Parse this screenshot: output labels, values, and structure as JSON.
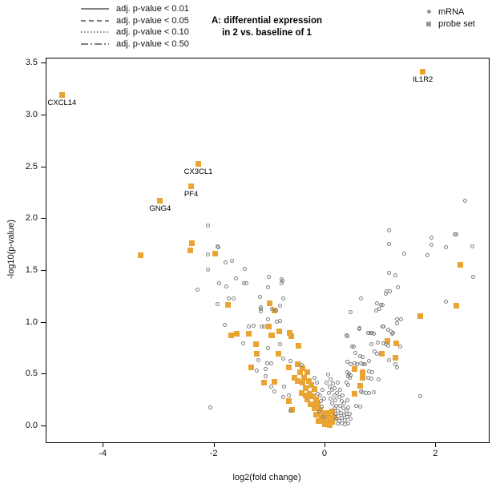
{
  "figure": {
    "kind": "volcano plot"
  },
  "legend_lines": {
    "items": [
      {
        "label": "adj. p-value < 0.01",
        "style": "solid"
      },
      {
        "label": "adj. p-value < 0.05",
        "style": "dashed"
      },
      {
        "label": "adj. p-value < 0.10",
        "style": "dotted"
      },
      {
        "label": "adj. p-value < 0.50",
        "style": "dashdot"
      }
    ]
  },
  "legend_markers": {
    "items": [
      {
        "label": "mRNA",
        "marker": "circle"
      },
      {
        "label": "probe set",
        "marker": "square"
      }
    ]
  },
  "chart_data": {
    "type": "scatter",
    "title": "A: differential expression in 2 vs. baseline of 1",
    "title_lines": [
      "A: differential expression",
      "in 2 vs. baseline of 1"
    ],
    "xlabel": "log2(fold change)",
    "ylabel": "-log10(p-value)",
    "xlim": [
      -5.03,
      2.95
    ],
    "ylim": [
      -0.155,
      3.55
    ],
    "grid": false,
    "legend_position": "top",
    "x_ticks": [
      {
        "v": -4,
        "label": "-4"
      },
      {
        "v": -2,
        "label": "-2"
      },
      {
        "v": 0,
        "label": "0"
      },
      {
        "v": 2,
        "label": "2"
      }
    ],
    "y_ticks": [
      {
        "v": 0.0,
        "label": "0.0"
      },
      {
        "v": 0.5,
        "label": "0.5"
      },
      {
        "v": 1.0,
        "label": "1.0"
      },
      {
        "v": 1.5,
        "label": "1.5"
      },
      {
        "v": 2.0,
        "label": "2.0"
      },
      {
        "v": 2.5,
        "label": "2.5"
      },
      {
        "v": 3.0,
        "label": "3.0"
      },
      {
        "v": 3.5,
        "label": "3.5"
      }
    ],
    "colors": {
      "probe_set": "#E9A431",
      "mrna": "#7E7E7E",
      "legend_marker": "#989898"
    },
    "labeled_points": [
      {
        "label": "CXCL14",
        "x": -4.75,
        "y": 3.2,
        "series": "probe set"
      },
      {
        "label": "IL1R2",
        "x": 1.76,
        "y": 3.42,
        "series": "probe set"
      },
      {
        "label": "CX3CL1",
        "x": -2.29,
        "y": 2.53,
        "series": "probe set"
      },
      {
        "label": "PF4",
        "x": -2.42,
        "y": 2.32,
        "series": "probe set"
      },
      {
        "label": "GNG4",
        "x": -2.98,
        "y": 2.18,
        "series": "probe set"
      }
    ],
    "series": [
      {
        "name": "probe set",
        "marker": "square",
        "points": [
          [
            -3.33,
            1.65
          ],
          [
            -2.4,
            1.77
          ],
          [
            -2.44,
            1.7
          ],
          [
            -1.98,
            1.67
          ],
          [
            -1.76,
            1.17
          ],
          [
            -1.0,
            1.19
          ],
          [
            -0.92,
            1.12
          ],
          [
            -1.02,
            0.96
          ],
          [
            -0.83,
            0.92
          ],
          [
            -0.64,
            0.9
          ],
          [
            -1.59,
            0.89
          ],
          [
            -1.38,
            0.89
          ],
          [
            -0.96,
            0.88
          ],
          [
            2.44,
            1.56
          ],
          [
            2.37,
            1.16
          ],
          [
            1.72,
            1.06
          ],
          [
            -1.7,
            0.88
          ],
          [
            -0.98,
            0.88
          ],
          [
            -0.61,
            0.87
          ],
          [
            -1.25,
            0.79
          ],
          [
            -0.48,
            0.78
          ],
          [
            -1.23,
            0.7
          ],
          [
            -0.85,
            0.7
          ],
          [
            -1.33,
            0.57
          ],
          [
            -0.65,
            0.57
          ],
          [
            -0.41,
            0.56
          ],
          [
            -1.1,
            0.42
          ],
          [
            -0.91,
            0.43
          ],
          [
            -0.55,
            0.47
          ],
          [
            -0.41,
            0.42
          ],
          [
            -0.65,
            0.24
          ],
          [
            -0.43,
            0.32
          ],
          [
            -0.36,
            0.3
          ],
          [
            -0.24,
            0.21
          ],
          [
            -0.17,
            0.2
          ],
          [
            -0.6,
            0.16
          ],
          [
            1.12,
            0.82
          ],
          [
            1.28,
            0.8
          ],
          [
            1.02,
            0.7
          ],
          [
            1.27,
            0.66
          ],
          [
            0.53,
            0.55
          ],
          [
            0.68,
            0.52
          ],
          [
            0.68,
            0.47
          ],
          [
            0.63,
            0.39
          ],
          [
            0.53,
            0.31
          ],
          [
            -0.5,
            0.6
          ],
          [
            -0.45,
            0.52
          ],
          [
            -0.5,
            0.44
          ],
          [
            -0.38,
            0.47
          ],
          [
            -0.33,
            0.52
          ],
          [
            -0.3,
            0.44
          ],
          [
            -0.36,
            0.37
          ],
          [
            -0.28,
            0.31
          ],
          [
            -0.33,
            0.26
          ],
          [
            -0.25,
            0.4
          ],
          [
            -0.2,
            0.36
          ],
          [
            -0.23,
            0.29
          ],
          [
            -0.17,
            0.26
          ],
          [
            -0.27,
            0.21
          ],
          [
            -0.2,
            0.17
          ],
          [
            -0.13,
            0.21
          ],
          [
            -0.1,
            0.16
          ],
          [
            -0.16,
            0.11
          ],
          [
            -0.07,
            0.1
          ],
          [
            -0.12,
            0.05
          ],
          [
            -0.04,
            0.05
          ],
          [
            -0.02,
            0.13
          ],
          [
            0.01,
            0.08
          ],
          [
            0.03,
            0.03
          ],
          [
            0.07,
            0.05
          ],
          [
            0.1,
            0.08
          ],
          [
            0.05,
            0.13
          ],
          [
            0.0,
            0.02
          ],
          [
            0.08,
            0.01
          ],
          [
            0.13,
            0.04
          ],
          [
            0.16,
            0.09
          ],
          [
            0.12,
            0.14
          ]
        ]
      },
      {
        "name": "mRNA",
        "marker": "circle",
        "points": [
          [
            -2.11,
            1.94
          ],
          [
            -1.94,
            1.74
          ],
          [
            -1.93,
            1.73
          ],
          [
            -2.11,
            1.66
          ],
          [
            -1.8,
            1.58
          ],
          [
            -1.69,
            1.6
          ],
          [
            -2.11,
            1.51
          ],
          [
            -1.45,
            1.52
          ],
          [
            -1.61,
            1.43
          ],
          [
            -1.92,
            1.38
          ],
          [
            -1.78,
            1.35
          ],
          [
            -1.46,
            1.38
          ],
          [
            -1.43,
            1.38
          ],
          [
            -1.02,
            1.44
          ],
          [
            -0.79,
            1.42
          ],
          [
            -0.77,
            1.4
          ],
          [
            -0.78,
            1.38
          ],
          [
            -1.04,
            1.34
          ],
          [
            -2.31,
            1.32
          ],
          [
            -1.18,
            1.25
          ],
          [
            -1.95,
            1.18
          ],
          [
            -1.74,
            1.23
          ],
          [
            -1.66,
            1.23
          ],
          [
            -0.76,
            1.23
          ],
          [
            -1.17,
            1.15
          ],
          [
            -1.17,
            1.13
          ],
          [
            -1.17,
            1.11
          ],
          [
            -0.81,
            1.16
          ],
          [
            -0.96,
            1.13
          ],
          [
            -0.89,
            1.12
          ],
          [
            -1.03,
            1.03
          ],
          [
            -0.88,
            1.01
          ],
          [
            -0.81,
            1.02
          ],
          [
            -1.82,
            0.98
          ],
          [
            -1.38,
            0.96
          ],
          [
            -1.29,
            0.97
          ],
          [
            -1.15,
            0.96
          ],
          [
            -1.11,
            0.96
          ],
          [
            -1.48,
            0.8
          ],
          [
            -1.03,
            0.75
          ],
          [
            -0.81,
            0.79
          ],
          [
            -1.2,
            0.64
          ],
          [
            -1.05,
            0.61
          ],
          [
            -0.98,
            0.61
          ],
          [
            -1.08,
            0.55
          ],
          [
            -1.23,
            0.54
          ],
          [
            -1.08,
            0.48
          ],
          [
            -0.97,
            0.38
          ],
          [
            -0.91,
            0.34
          ],
          [
            -0.76,
            0.28
          ],
          [
            -0.63,
            0.15
          ],
          [
            -2.08,
            0.18
          ],
          [
            -0.76,
            0.65
          ],
          [
            -0.63,
            0.63
          ],
          [
            -0.42,
            0.59
          ],
          [
            -0.75,
            0.38
          ],
          [
            -0.66,
            0.3
          ],
          [
            2.53,
            2.18
          ],
          [
            1.15,
            1.89
          ],
          [
            2.36,
            1.85
          ],
          [
            1.15,
            1.76
          ],
          [
            1.92,
            1.82
          ],
          [
            2.34,
            1.85
          ],
          [
            1.92,
            1.75
          ],
          [
            2.17,
            1.73
          ],
          [
            2.66,
            1.74
          ],
          [
            1.42,
            1.67
          ],
          [
            1.85,
            1.65
          ],
          [
            1.15,
            1.48
          ],
          [
            1.26,
            1.46
          ],
          [
            2.67,
            1.44
          ],
          [
            1.31,
            1.34
          ],
          [
            1.11,
            1.3
          ],
          [
            1.17,
            1.3
          ],
          [
            1.09,
            1.28
          ],
          [
            0.65,
            1.23
          ],
          [
            0.93,
            1.19
          ],
          [
            1.0,
            1.17
          ],
          [
            1.04,
            1.17
          ],
          [
            0.97,
            1.13
          ],
          [
            0.92,
            1.12
          ],
          [
            0.45,
            1.1
          ],
          [
            2.17,
            1.2
          ],
          [
            0.61,
            0.95
          ],
          [
            1.04,
            0.96
          ],
          [
            1.13,
            0.93
          ],
          [
            1.21,
            0.89
          ],
          [
            0.77,
            0.9
          ],
          [
            0.82,
            0.9
          ],
          [
            0.88,
            0.89
          ],
          [
            0.38,
            0.88
          ],
          [
            1.3,
            1.03
          ],
          [
            1.37,
            1.03
          ],
          [
            0.62,
            0.94
          ],
          [
            0.4,
            0.87
          ],
          [
            0.78,
            0.9
          ],
          [
            0.84,
            0.9
          ],
          [
            1.05,
            0.96
          ],
          [
            1.18,
            0.92
          ],
          [
            1.22,
            0.9
          ],
          [
            1.29,
            0.99
          ],
          [
            0.83,
            0.79
          ],
          [
            0.95,
            0.81
          ],
          [
            1.05,
            0.8
          ],
          [
            1.09,
            0.79
          ],
          [
            1.13,
            0.78
          ],
          [
            1.35,
            0.77
          ],
          [
            0.48,
            0.77
          ],
          [
            0.52,
            0.77
          ],
          [
            0.54,
            0.71
          ],
          [
            0.63,
            0.68
          ],
          [
            0.67,
            0.67
          ],
          [
            0.89,
            0.72
          ],
          [
            0.93,
            0.7
          ],
          [
            1.15,
            0.64
          ],
          [
            1.26,
            0.6
          ],
          [
            1.29,
            0.57
          ],
          [
            0.4,
            0.62
          ],
          [
            0.46,
            0.6
          ],
          [
            0.53,
            0.61
          ],
          [
            0.57,
            0.6
          ],
          [
            0.65,
            0.61
          ],
          [
            0.69,
            0.6
          ],
          [
            0.72,
            0.6
          ],
          [
            0.79,
            0.63
          ],
          [
            0.4,
            0.52
          ],
          [
            0.43,
            0.51
          ],
          [
            0.46,
            0.49
          ],
          [
            0.79,
            0.53
          ],
          [
            0.84,
            0.52
          ],
          [
            0.77,
            0.47
          ],
          [
            0.83,
            0.46
          ],
          [
            0.96,
            0.45
          ],
          [
            0.41,
            0.48
          ],
          [
            0.44,
            0.47
          ],
          [
            0.38,
            0.42
          ],
          [
            0.41,
            0.4
          ],
          [
            0.64,
            0.34
          ],
          [
            0.68,
            0.33
          ],
          [
            0.73,
            0.32
          ],
          [
            0.79,
            0.32
          ],
          [
            0.88,
            0.33
          ],
          [
            1.71,
            0.29
          ],
          [
            0.56,
            0.2
          ],
          [
            0.63,
            0.19
          ],
          [
            0.38,
            0.12
          ],
          [
            0.05,
            0.5
          ],
          [
            0.1,
            0.45
          ],
          [
            0.02,
            0.42
          ],
          [
            0.08,
            0.38
          ],
          [
            0.14,
            0.41
          ],
          [
            0.12,
            0.35
          ],
          [
            0.06,
            0.32
          ],
          [
            0.16,
            0.3
          ],
          [
            0.1,
            0.27
          ],
          [
            0.18,
            0.25
          ],
          [
            0.13,
            0.22
          ],
          [
            0.2,
            0.2
          ],
          [
            0.16,
            0.17
          ],
          [
            0.22,
            0.15
          ],
          [
            0.18,
            0.12
          ],
          [
            0.24,
            0.1
          ],
          [
            0.2,
            0.07
          ],
          [
            0.26,
            0.05
          ],
          [
            0.22,
            0.03
          ],
          [
            0.28,
            0.13
          ],
          [
            0.3,
            0.08
          ],
          [
            0.32,
            0.17
          ],
          [
            0.27,
            0.2
          ],
          [
            0.34,
            0.11
          ],
          [
            0.3,
            0.03
          ],
          [
            0.36,
            0.06
          ],
          [
            0.34,
            0.22
          ],
          [
            0.38,
            0.15
          ],
          [
            0.4,
            0.09
          ],
          [
            0.36,
            0.02
          ],
          [
            0.42,
            0.18
          ],
          [
            0.44,
            0.12
          ],
          [
            0.4,
            0.25
          ],
          [
            0.46,
            0.07
          ],
          [
            0.42,
            0.03
          ],
          [
            0.25,
            0.28
          ],
          [
            0.21,
            0.32
          ],
          [
            0.29,
            0.24
          ],
          [
            0.17,
            0.37
          ],
          [
            0.23,
            0.42
          ],
          [
            0.31,
            0.3
          ],
          [
            0.27,
            0.35
          ],
          [
            -0.05,
            0.35
          ],
          [
            -0.1,
            0.3
          ],
          [
            -0.02,
            0.27
          ],
          [
            -0.08,
            0.24
          ],
          [
            -0.14,
            0.31
          ],
          [
            -0.06,
            0.19
          ],
          [
            -0.11,
            0.14
          ],
          [
            -0.03,
            0.09
          ],
          [
            -0.15,
            0.42
          ],
          [
            -0.2,
            0.47
          ]
        ]
      }
    ]
  }
}
